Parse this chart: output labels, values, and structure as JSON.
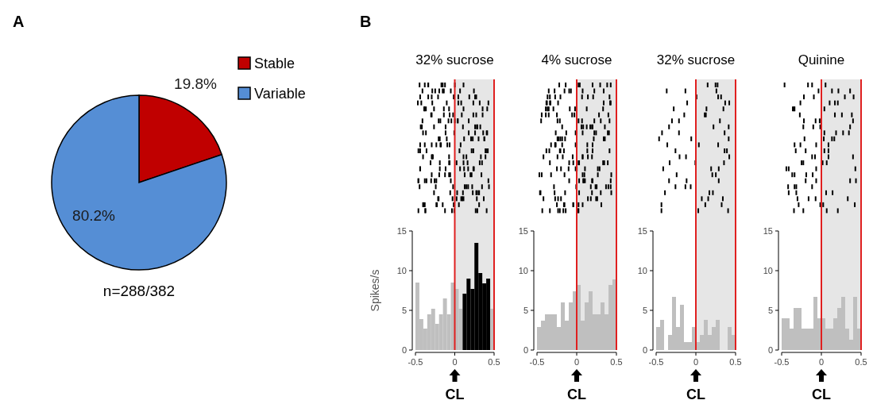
{
  "chart_data": [
    {
      "type": "pie",
      "categories": [
        "Stable",
        "Variable"
      ],
      "values": [
        19.8,
        80.2
      ],
      "colors": [
        "#c00000",
        "#558ed5"
      ],
      "value_labels": [
        "19.8%",
        "80.2%"
      ],
      "legend": "top right",
      "annotations": [
        "A",
        "n=288/382"
      ]
    },
    {
      "type": "histogram",
      "title": "32% sucrose",
      "ylabel": "Spikes/s",
      "bins": [
        -0.5,
        -0.45,
        -0.4,
        -0.35,
        -0.3,
        -0.25,
        -0.2,
        -0.15,
        -0.1,
        -0.05,
        0,
        0.05,
        0.1,
        0.15,
        0.2,
        0.25,
        0.3,
        0.35,
        0.4,
        0.45,
        0.5
      ],
      "values": [
        8.5,
        3.9,
        2.7,
        4.5,
        5.2,
        3.3,
        4.5,
        6.5,
        4.5,
        8.5,
        7.7,
        5.2,
        7.1,
        9.0,
        7.7,
        13.5,
        9.7,
        8.4,
        9.0,
        5.2
      ],
      "colors": [
        "#bfbfbf",
        "#bfbfbf",
        "#bfbfbf",
        "#bfbfbf",
        "#bfbfbf",
        "#bfbfbf",
        "#bfbfbf",
        "#bfbfbf",
        "#bfbfbf",
        "#bfbfbf",
        "#bfbfbf",
        "#bfbfbf",
        "#000000",
        "#000000",
        "#000000",
        "#000000",
        "#000000",
        "#000000",
        "#000000",
        "#bfbfbf"
      ],
      "xlim": [
        -0.5,
        0.5
      ],
      "xticks": [
        -0.5,
        0,
        0.5
      ],
      "ylim": [
        0,
        15
      ],
      "yticks": [
        0,
        5,
        10,
        15
      ],
      "bands": [
        {
          "axis": "x",
          "from": 0,
          "to": 0.5,
          "color": "#e6e6e6"
        }
      ],
      "ref_lines": [
        {
          "axis": "x",
          "value": 0,
          "color": "#e02020"
        },
        {
          "axis": "x",
          "value": 0.5,
          "color": "#e02020"
        }
      ],
      "annotations": [
        "B",
        "CL"
      ]
    },
    {
      "type": "histogram",
      "title": "4% sucrose",
      "bins": [
        -0.5,
        -0.45,
        -0.4,
        -0.35,
        -0.3,
        -0.25,
        -0.2,
        -0.15,
        -0.1,
        -0.05,
        0,
        0.05,
        0.1,
        0.15,
        0.2,
        0.25,
        0.3,
        0.35,
        0.4,
        0.45,
        0.5
      ],
      "values": [
        2.9,
        3.7,
        4.5,
        4.5,
        4.5,
        2.9,
        6.0,
        3.7,
        6.0,
        7.4,
        8.2,
        3.7,
        6.0,
        7.4,
        4.5,
        4.5,
        6.0,
        4.5,
        8.2,
        8.9
      ],
      "colors": [
        "#bfbfbf",
        "#bfbfbf",
        "#bfbfbf",
        "#bfbfbf",
        "#bfbfbf",
        "#bfbfbf",
        "#bfbfbf",
        "#bfbfbf",
        "#bfbfbf",
        "#bfbfbf",
        "#bfbfbf",
        "#bfbfbf",
        "#bfbfbf",
        "#bfbfbf",
        "#bfbfbf",
        "#bfbfbf",
        "#bfbfbf",
        "#bfbfbf",
        "#bfbfbf",
        "#bfbfbf"
      ],
      "xlim": [
        -0.5,
        0.5
      ],
      "xticks": [
        -0.5,
        0,
        0.5
      ],
      "ylim": [
        0,
        15
      ],
      "yticks": [
        0,
        5,
        10,
        15
      ],
      "bands": [
        {
          "axis": "x",
          "from": 0,
          "to": 0.5,
          "color": "#e6e6e6"
        }
      ],
      "ref_lines": [
        {
          "axis": "x",
          "value": 0,
          "color": "#e02020"
        },
        {
          "axis": "x",
          "value": 0.5,
          "color": "#e02020"
        }
      ],
      "annotations": [
        "CL"
      ]
    },
    {
      "type": "histogram",
      "title": "32% sucrose",
      "bins": [
        -0.5,
        -0.45,
        -0.4,
        -0.35,
        -0.3,
        -0.25,
        -0.2,
        -0.15,
        -0.1,
        -0.05,
        0,
        0.05,
        0.1,
        0.15,
        0.2,
        0.25,
        0.3,
        0.35,
        0.4,
        0.45,
        0.5
      ],
      "values": [
        2.9,
        3.8,
        0,
        1.9,
        6.7,
        2.9,
        5.7,
        1.0,
        1.0,
        2.9,
        1.0,
        1.9,
        3.8,
        1.9,
        2.9,
        3.8,
        0,
        0,
        2.9,
        1.9
      ],
      "colors": [
        "#bfbfbf",
        "#bfbfbf",
        "#bfbfbf",
        "#bfbfbf",
        "#bfbfbf",
        "#bfbfbf",
        "#bfbfbf",
        "#bfbfbf",
        "#bfbfbf",
        "#bfbfbf",
        "#bfbfbf",
        "#bfbfbf",
        "#bfbfbf",
        "#bfbfbf",
        "#bfbfbf",
        "#bfbfbf",
        "#bfbfbf",
        "#bfbfbf",
        "#bfbfbf",
        "#bfbfbf"
      ],
      "xlim": [
        -0.5,
        0.5
      ],
      "xticks": [
        -0.5,
        0,
        0.5
      ],
      "ylim": [
        0,
        15
      ],
      "yticks": [
        0,
        5,
        10,
        15
      ],
      "bands": [
        {
          "axis": "x",
          "from": 0,
          "to": 0.5,
          "color": "#e6e6e6"
        }
      ],
      "ref_lines": [
        {
          "axis": "x",
          "value": 0,
          "color": "#e02020"
        },
        {
          "axis": "x",
          "value": 0.5,
          "color": "#e02020"
        }
      ],
      "annotations": [
        "CL"
      ]
    },
    {
      "type": "histogram",
      "title": "Quinine",
      "bins": [
        -0.5,
        -0.45,
        -0.4,
        -0.35,
        -0.3,
        -0.25,
        -0.2,
        -0.15,
        -0.1,
        -0.05,
        0,
        0.05,
        0.1,
        0.15,
        0.2,
        0.25,
        0.3,
        0.35,
        0.4,
        0.45,
        0.5
      ],
      "values": [
        4.0,
        4.0,
        2.7,
        5.3,
        5.3,
        2.7,
        2.7,
        2.7,
        6.7,
        4.0,
        4.0,
        2.7,
        2.7,
        4.0,
        5.3,
        6.7,
        2.7,
        1.3,
        6.7,
        2.7
      ],
      "colors": [
        "#bfbfbf",
        "#bfbfbf",
        "#bfbfbf",
        "#bfbfbf",
        "#bfbfbf",
        "#bfbfbf",
        "#bfbfbf",
        "#bfbfbf",
        "#bfbfbf",
        "#bfbfbf",
        "#bfbfbf",
        "#bfbfbf",
        "#bfbfbf",
        "#bfbfbf",
        "#bfbfbf",
        "#bfbfbf",
        "#bfbfbf",
        "#bfbfbf",
        "#bfbfbf",
        "#bfbfbf"
      ],
      "xlim": [
        -0.5,
        0.5
      ],
      "xticks": [
        -0.5,
        0,
        0.5
      ],
      "ylim": [
        0,
        15
      ],
      "yticks": [
        0,
        5,
        10,
        15
      ],
      "bands": [
        {
          "axis": "x",
          "from": 0,
          "to": 0.5,
          "color": "#e6e6e6"
        }
      ],
      "ref_lines": [
        {
          "axis": "x",
          "value": 0,
          "color": "#e02020"
        },
        {
          "axis": "x",
          "value": 0.5,
          "color": "#e02020"
        }
      ],
      "annotations": [
        "CL"
      ]
    }
  ]
}
